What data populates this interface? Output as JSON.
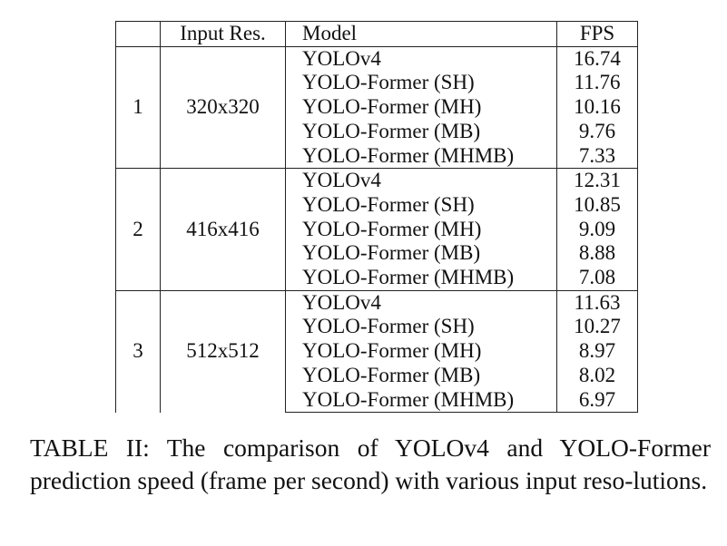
{
  "table": {
    "headers": [
      "",
      "Input Res.",
      "Model",
      "FPS"
    ],
    "groups": [
      {
        "index": "1",
        "resolution": "320x320",
        "rows": [
          {
            "model": "YOLOv4",
            "fps": "16.74"
          },
          {
            "model": "YOLO-Former (SH)",
            "fps": "11.76"
          },
          {
            "model": "YOLO-Former (MH)",
            "fps": "10.16"
          },
          {
            "model": "YOLO-Former (MB)",
            "fps": "9.76"
          },
          {
            "model": "YOLO-Former (MHMB)",
            "fps": "7.33"
          }
        ]
      },
      {
        "index": "2",
        "resolution": "416x416",
        "rows": [
          {
            "model": "YOLOv4",
            "fps": "12.31"
          },
          {
            "model": "YOLO-Former (SH)",
            "fps": "10.85"
          },
          {
            "model": "YOLO-Former (MH)",
            "fps": "9.09"
          },
          {
            "model": "YOLO-Former (MB)",
            "fps": "8.88"
          },
          {
            "model": "YOLO-Former (MHMB)",
            "fps": "7.08"
          }
        ]
      },
      {
        "index": "3",
        "resolution": "512x512",
        "rows": [
          {
            "model": "YOLOv4",
            "fps": "11.63"
          },
          {
            "model": "YOLO-Former (SH)",
            "fps": "10.27"
          },
          {
            "model": "YOLO-Former (MH)",
            "fps": "8.97"
          },
          {
            "model": "YOLO-Former (MB)",
            "fps": "8.02"
          },
          {
            "model": "YOLO-Former (MHMB)",
            "fps": "6.97"
          }
        ]
      }
    ]
  },
  "caption": "TABLE II: The comparison of YOLOv4 and YOLO-Former prediction speed (frame per second) with various input reso-­lutions."
}
